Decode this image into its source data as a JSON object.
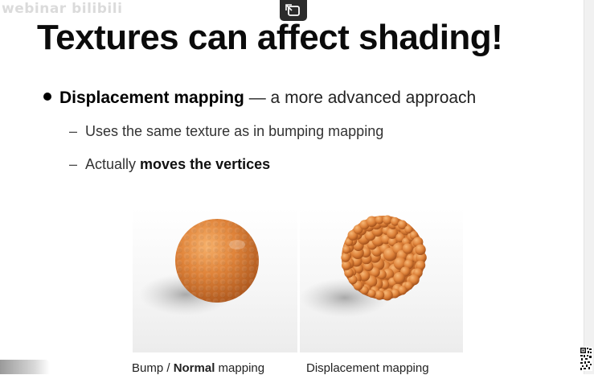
{
  "watermark": "webinar bilibili",
  "toolbar": {
    "restore_icon": "restore-window-icon"
  },
  "slide": {
    "title": "Textures can affect shading!",
    "bullet": {
      "bold": "Displacement mapping",
      "rest": " — a more advanced approach"
    },
    "subs": [
      {
        "dash": "–",
        "text": "Uses the same texture as in bumping mapping"
      },
      {
        "dash": "–",
        "text_plain": "Actually ",
        "text_bold": "moves the vertices"
      }
    ],
    "captions": {
      "left": {
        "pre": "Bump / ",
        "bold": "Normal",
        "post": " mapping"
      },
      "right": "Displacement mapping"
    }
  },
  "colors": {
    "sphere": "#e0843a",
    "sphere_dark": "#b85a1d",
    "shadow": "#b9b9b9"
  },
  "icons": {
    "qr": "qr-code-icon"
  }
}
